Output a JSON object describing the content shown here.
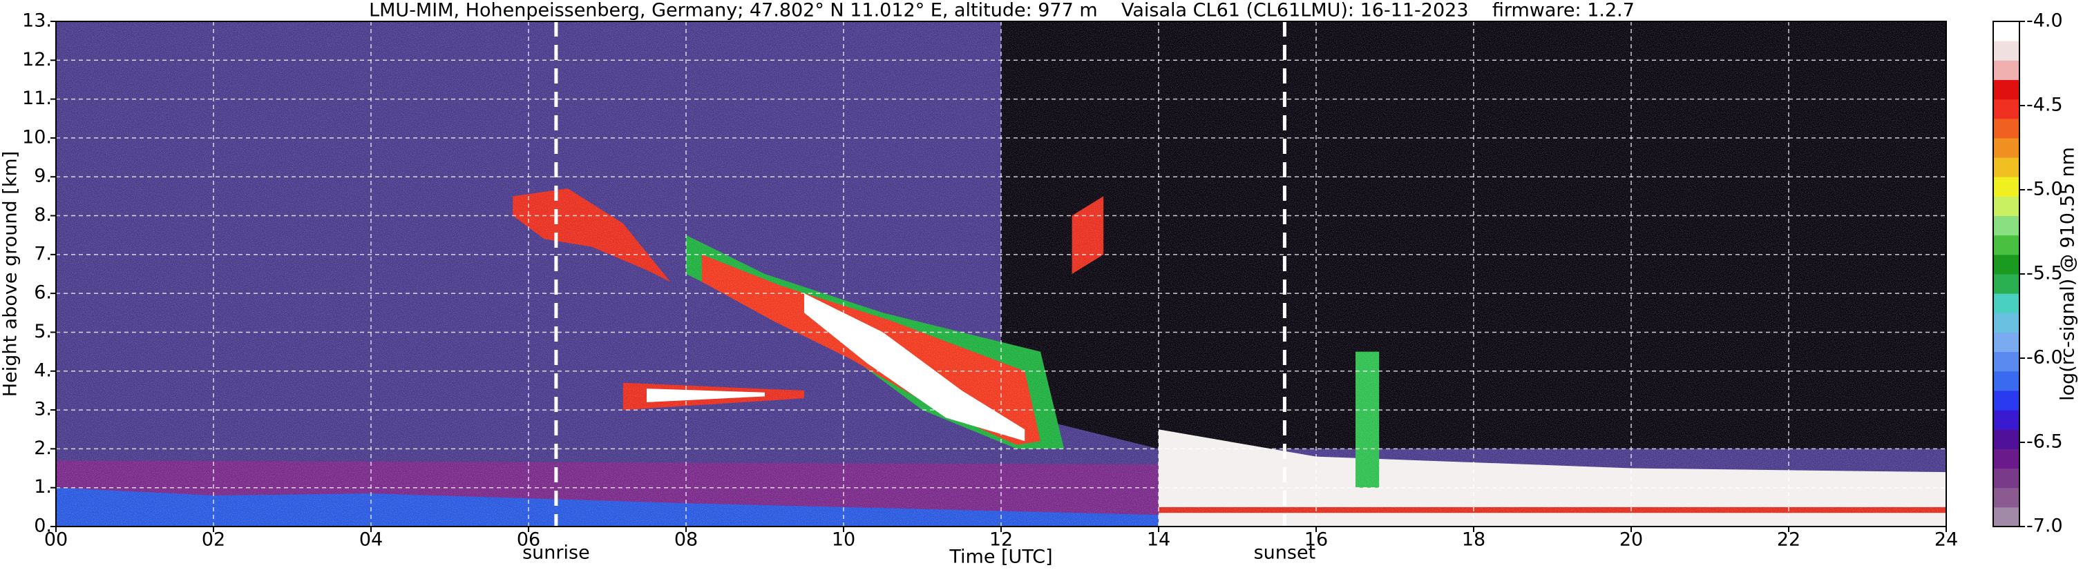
{
  "chart_data": {
    "type": "heatmap",
    "title": "LMU-MIM, Hohenpeissenberg, Germany; 47.802° N 11.012° E, altitude: 977 m    Vaisala CL61 (CL61LMU): 16-11-2023    firmware: 1.2.7",
    "x_label": "Time [UTC]",
    "y_label": "Height above ground [km]",
    "xlim": [
      0,
      24
    ],
    "ylim": [
      0,
      13
    ],
    "xticks": [
      {
        "value": 0,
        "label": "00"
      },
      {
        "value": 2,
        "label": "02"
      },
      {
        "value": 4,
        "label": "04"
      },
      {
        "value": 6,
        "label": "06"
      },
      {
        "value": 8,
        "label": "08"
      },
      {
        "value": 10,
        "label": "10"
      },
      {
        "value": 12,
        "label": "12"
      },
      {
        "value": 14,
        "label": "14"
      },
      {
        "value": 16,
        "label": "16"
      },
      {
        "value": 18,
        "label": "18"
      },
      {
        "value": 20,
        "label": "20"
      },
      {
        "value": 22,
        "label": "22"
      },
      {
        "value": 24,
        "label": "24"
      }
    ],
    "yticks": [
      {
        "value": 0,
        "label": "0."
      },
      {
        "value": 1,
        "label": "1."
      },
      {
        "value": 2,
        "label": "2."
      },
      {
        "value": 3,
        "label": "3."
      },
      {
        "value": 4,
        "label": "4."
      },
      {
        "value": 5,
        "label": "5."
      },
      {
        "value": 6,
        "label": "6."
      },
      {
        "value": 7,
        "label": "7."
      },
      {
        "value": 8,
        "label": "8."
      },
      {
        "value": 9,
        "label": "9."
      },
      {
        "value": 10,
        "label": "10."
      },
      {
        "value": 11,
        "label": "11."
      },
      {
        "value": 12,
        "label": "12."
      },
      {
        "value": 13,
        "label": "13."
      }
    ],
    "grid": true,
    "background": "#4b3c8c",
    "features": [
      {
        "color": "#0c0812",
        "t": [
          12,
          24,
          24,
          14,
          12
        ],
        "h": [
          13,
          13,
          2,
          2,
          3
        ]
      },
      {
        "color": "#7a2a8a",
        "t": [
          0,
          14,
          14,
          0
        ],
        "h": [
          0,
          0,
          1.6,
          1.7
        ]
      },
      {
        "color": "#2a5ae0",
        "t": [
          0,
          14,
          14,
          12,
          8,
          4,
          2,
          0
        ],
        "h": [
          0,
          0,
          0.3,
          0.4,
          0.6,
          0.85,
          0.8,
          1.0
        ]
      },
      {
        "color": "#f4efef",
        "t": [
          14,
          24,
          24,
          20,
          16,
          14
        ],
        "h": [
          0,
          0,
          1.4,
          1.5,
          1.8,
          2.5
        ]
      },
      {
        "color": "#e03020",
        "t": [
          14,
          24,
          24,
          14
        ],
        "h": [
          0.35,
          0.35,
          0.5,
          0.5
        ]
      },
      {
        "color": "#e83020",
        "t": [
          5.8,
          6.5,
          7.2,
          7.8,
          7.5,
          6.8,
          6.2,
          5.8
        ],
        "h": [
          8.5,
          8.7,
          7.8,
          6.3,
          6.6,
          7.2,
          7.4,
          8.0
        ]
      },
      {
        "color": "#20b040",
        "t": [
          8,
          9,
          10.5,
          12.5,
          12.8,
          12.2,
          11,
          10,
          9,
          8
        ],
        "h": [
          7.5,
          6.5,
          5.5,
          4.5,
          2.0,
          2.0,
          3.0,
          4.5,
          5.5,
          6.5
        ]
      },
      {
        "color": "#f03a20",
        "t": [
          8.2,
          9.2,
          10.6,
          12.3,
          12.5,
          12.2,
          11.2,
          10.1,
          9.1,
          8.2
        ],
        "h": [
          7.0,
          6.2,
          5.3,
          4.0,
          2.2,
          2.1,
          3.0,
          4.3,
          5.3,
          6.3
        ]
      },
      {
        "color": "#ffffff",
        "t": [
          9.5,
          10.5,
          11.5,
          12.3,
          12.3,
          11.3,
          10.3,
          9.5
        ],
        "h": [
          6.0,
          5.0,
          3.5,
          2.5,
          2.2,
          2.8,
          4.2,
          5.5
        ]
      },
      {
        "color": "#e83020",
        "t": [
          7.2,
          9.5,
          9.5,
          7.2
        ],
        "h": [
          3.0,
          3.3,
          3.5,
          3.7
        ]
      },
      {
        "color": "#ffffff",
        "t": [
          7.5,
          9.0,
          9.0,
          7.5
        ],
        "h": [
          3.2,
          3.35,
          3.45,
          3.55
        ]
      },
      {
        "color": "#e83020",
        "t": [
          12.9,
          13.3,
          13.3,
          12.9
        ],
        "h": [
          6.5,
          7.0,
          8.5,
          8.0
        ]
      },
      {
        "color": "#30c050",
        "t": [
          16.5,
          16.8,
          16.8,
          16.5
        ],
        "h": [
          1.0,
          1.0,
          4.5,
          4.5
        ]
      }
    ],
    "annotations": [
      {
        "text": "sunrise",
        "x": 6.35
      },
      {
        "text": "sunset",
        "x": 15.6
      }
    ],
    "colorbar": {
      "label": "log(rc-signal) @ 910.55 nm",
      "lim": [
        -7,
        -4
      ],
      "ticks": [
        {
          "value": -4,
          "label": "-4.0"
        },
        {
          "value": -4.5,
          "label": "-4.5"
        },
        {
          "value": -5,
          "label": "-5.0"
        },
        {
          "value": -5.5,
          "label": "-5.5"
        },
        {
          "value": -6,
          "label": "-6.0"
        },
        {
          "value": -6.5,
          "label": "-6.5"
        },
        {
          "value": -7,
          "label": "-7.0"
        }
      ],
      "colors": [
        "#a08aa8",
        "#8a5a90",
        "#7a3a8a",
        "#6a1a8a",
        "#50109a",
        "#3a1ad0",
        "#2a3af0",
        "#3a6af0",
        "#5a8af0",
        "#7aaaf0",
        "#6ac0e0",
        "#4ad0c0",
        "#2ab050",
        "#1a9a20",
        "#4ac040",
        "#8ae080",
        "#c8f060",
        "#f0f020",
        "#f0c020",
        "#f09020",
        "#f06020",
        "#f03020",
        "#e01010",
        "#f0b0b0",
        "#f0e0e0",
        "#ffffff"
      ]
    }
  }
}
